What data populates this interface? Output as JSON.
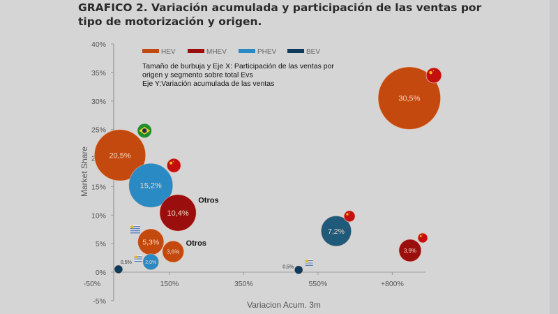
{
  "title": "GRAFICO 2. Variación acumulada y participación de las ventas por tipo de motorización y origen.",
  "colors": {
    "HEV": "#c4490e",
    "MHEV": "#9a0e0e",
    "PHEV": "#2a8ac4",
    "BEV": "#0f3b5c",
    "BEV_mid": "#1f5a7a",
    "background": "#d5d5d5"
  },
  "chart_data": {
    "type": "bubble",
    "title": "GRAFICO 2. Variación acumulada y participación de las ventas por tipo de motorización y origen.",
    "xlabel": "Variacion Acum. 3m",
    "ylabel": "Market Share",
    "x_ticks": [
      {
        "value": -50,
        "label": "-50%"
      },
      {
        "value": 150,
        "label": "150%"
      },
      {
        "value": 350,
        "label": "350%"
      },
      {
        "value": 550,
        "label": "550%"
      },
      {
        "value": 750,
        "label": "+800%"
      }
    ],
    "y_ticks": [
      {
        "value": 40,
        "label": "40%"
      },
      {
        "value": 35,
        "label": "35%"
      },
      {
        "value": 30,
        "label": "30%"
      },
      {
        "value": 25,
        "label": "25%"
      },
      {
        "value": 20,
        "label": "20%"
      },
      {
        "value": 15,
        "label": "15%"
      },
      {
        "value": 10,
        "label": "10%"
      },
      {
        "value": 5,
        "label": "5%"
      },
      {
        "value": 0,
        "label": "0%"
      },
      {
        "value": -5,
        "label": "-5%"
      }
    ],
    "xlim": [
      0,
      850
    ],
    "ylim": [
      -5,
      40
    ],
    "grid": false,
    "legend": {
      "placement": "top",
      "entries": [
        "HEV",
        "MHEV",
        "PHEV",
        "BEV"
      ]
    },
    "notes": [
      "Tamaño de burbuja y Eje X: Participación de las ventas por",
      "origen y segmento sobre total Evs",
      "Eje Y:Variación acumulada de las ventas"
    ],
    "points": [
      {
        "series": "HEV",
        "x": 17,
        "y": 20.5,
        "size": 20.5,
        "label": "20,5%",
        "origin": "Brasil"
      },
      {
        "series": "PHEV",
        "x": 100,
        "y": 15.2,
        "size": 15.2,
        "label": "15,2%",
        "origin": "China"
      },
      {
        "series": "MHEV",
        "x": 173,
        "y": 10.4,
        "size": 10.4,
        "label": "10,4%",
        "origin": "Otros",
        "annotation": "Otros"
      },
      {
        "series": "HEV",
        "x": 100,
        "y": 5.3,
        "size": 5.3,
        "label": "5,3%",
        "origin": "Uruguay"
      },
      {
        "series": "HEV",
        "x": 160,
        "y": 3.6,
        "size": 3.6,
        "label": "3,6%",
        "origin": "Otros",
        "annotation": "Otros"
      },
      {
        "series": "PHEV",
        "x": 100,
        "y": 1.8,
        "size": 2.0,
        "label": "2,0%",
        "origin": "Uruguay"
      },
      {
        "series": "BEV",
        "x": 13,
        "y": 0.5,
        "size": 0.5,
        "label": "0,5%"
      },
      {
        "series": "HEV",
        "x": 796,
        "y": 30.5,
        "size": 30.5,
        "label": "30,5%",
        "origin": "China"
      },
      {
        "series": "BEV",
        "x": 599,
        "y": 7.2,
        "size": 7.2,
        "label": "7,2%",
        "origin": "China"
      },
      {
        "series": "MHEV",
        "x": 798,
        "y": 3.8,
        "size": 3.9,
        "label": "3,9%",
        "origin": "China"
      },
      {
        "series": "BEV",
        "x": 498,
        "y": 0.4,
        "size": 0.5,
        "label": "0,5%",
        "origin": "Uruguay"
      }
    ],
    "flags": [
      {
        "country": "Brasil",
        "x": 83,
        "y": 24.8
      },
      {
        "country": "China",
        "x": 162,
        "y": 18.7
      },
      {
        "country": "Uruguay",
        "x": 58,
        "y": 7.5
      },
      {
        "country": "Uruguay",
        "x": 66,
        "y": 2.4
      },
      {
        "country": "China",
        "x": 862,
        "y": 34.5
      },
      {
        "country": "China",
        "x": 635,
        "y": 9.8
      },
      {
        "country": "China",
        "x": 832,
        "y": 6.0
      },
      {
        "country": "Uruguay",
        "x": 526,
        "y": 1.7
      }
    ]
  }
}
